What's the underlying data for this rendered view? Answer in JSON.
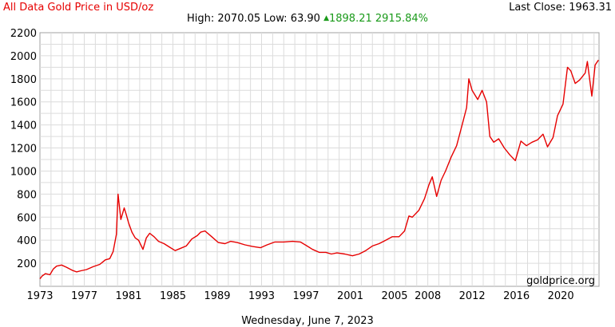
{
  "header": {
    "title": "All Data Gold Price in USD/oz",
    "last_close_label": "Last Close:",
    "last_close_value": "1963.31",
    "high_label": "High:",
    "high_value": "2070.05",
    "low_label": "Low:",
    "low_value": "63.90",
    "change_value": "1898.21",
    "change_pct": "2915.84%",
    "change_color": "#1a9a1a",
    "title_color": "#e60000"
  },
  "footer": {
    "date": "Wednesday, June 7, 2023"
  },
  "watermark": "goldprice.org",
  "chart_data": {
    "type": "line",
    "title": "All Data Gold Price in USD/oz",
    "xlabel": "",
    "ylabel": "",
    "xlim": [
      1973.0,
      2023.45
    ],
    "ylim": [
      0,
      2200
    ],
    "grid": true,
    "line_color": "#e60000",
    "x_ticks": [
      1973,
      1977,
      1981,
      1985,
      1989,
      1993,
      1997,
      2001,
      2005,
      2008,
      2012,
      2016,
      2020
    ],
    "x_tick_labels": [
      "1973",
      "1977",
      "1981",
      "1985",
      "1989",
      "1993",
      "1997",
      "2001",
      "2005",
      "2008",
      "2012",
      "2016",
      "2020"
    ],
    "y_ticks": [
      200,
      400,
      600,
      800,
      1000,
      1200,
      1400,
      1600,
      1800,
      2000,
      2200
    ],
    "y_tick_labels": [
      "200",
      "400",
      "600",
      "800",
      "1000",
      "1200",
      "1400",
      "1600",
      "1800",
      "2000",
      "2200"
    ],
    "series": [
      {
        "x": [
          1973.0,
          1973.2,
          1973.5,
          1973.9,
          1974.2,
          1974.5,
          1974.95,
          1975.4,
          1975.9,
          1976.3,
          1976.7,
          1977.2,
          1977.8,
          1978.4,
          1978.9,
          1979.3,
          1979.6,
          1979.9,
          1980.05,
          1980.3,
          1980.6,
          1980.8,
          1981.0,
          1981.3,
          1981.6,
          1981.9,
          1982.3,
          1982.6,
          1982.9,
          1983.3,
          1983.7,
          1984.2,
          1984.7,
          1985.2,
          1985.7,
          1986.2,
          1986.7,
          1987.2,
          1987.5,
          1987.9,
          1988.5,
          1989.1,
          1989.7,
          1990.2,
          1990.8,
          1991.5,
          1992.2,
          1992.9,
          1993.5,
          1994.2,
          1995.0,
          1995.8,
          1996.5,
          1997.1,
          1997.6,
          1998.2,
          1998.8,
          1999.3,
          1999.8,
          2000.5,
          2001.2,
          2001.8,
          2002.4,
          2003.0,
          2003.6,
          2004.2,
          2004.8,
          2005.4,
          2005.9,
          2006.3,
          2006.6,
          2007.2,
          2007.7,
          2008.1,
          2008.4,
          2008.8,
          2009.2,
          2009.6,
          2010.1,
          2010.6,
          2011.1,
          2011.5,
          2011.7,
          2012.0,
          2012.5,
          2012.9,
          2013.3,
          2013.6,
          2013.95,
          2014.4,
          2014.9,
          2015.4,
          2015.9,
          2016.4,
          2016.9,
          2017.4,
          2017.9,
          2018.4,
          2018.8,
          2019.3,
          2019.7,
          2020.2,
          2020.6,
          2020.9,
          2021.3,
          2021.7,
          2022.2,
          2022.4,
          2022.8,
          2023.1,
          2023.4
        ],
        "y": [
          65,
          90,
          110,
          100,
          150,
          175,
          185,
          165,
          140,
          125,
          135,
          145,
          170,
          190,
          230,
          240,
          300,
          450,
          800,
          580,
          680,
          620,
          550,
          470,
          420,
          400,
          320,
          420,
          460,
          430,
          390,
          370,
          340,
          310,
          330,
          350,
          410,
          440,
          470,
          480,
          430,
          380,
          370,
          390,
          380,
          360,
          345,
          335,
          360,
          385,
          385,
          390,
          385,
          350,
          320,
          295,
          295,
          280,
          290,
          280,
          265,
          280,
          310,
          350,
          370,
          400,
          430,
          430,
          480,
          610,
          600,
          660,
          760,
          880,
          950,
          780,
          920,
          1000,
          1120,
          1220,
          1400,
          1550,
          1800,
          1700,
          1620,
          1700,
          1600,
          1300,
          1250,
          1280,
          1200,
          1140,
          1090,
          1260,
          1220,
          1250,
          1270,
          1320,
          1210,
          1290,
          1480,
          1580,
          1900,
          1870,
          1760,
          1790,
          1850,
          1950,
          1650,
          1920,
          1963
        ]
      }
    ]
  }
}
